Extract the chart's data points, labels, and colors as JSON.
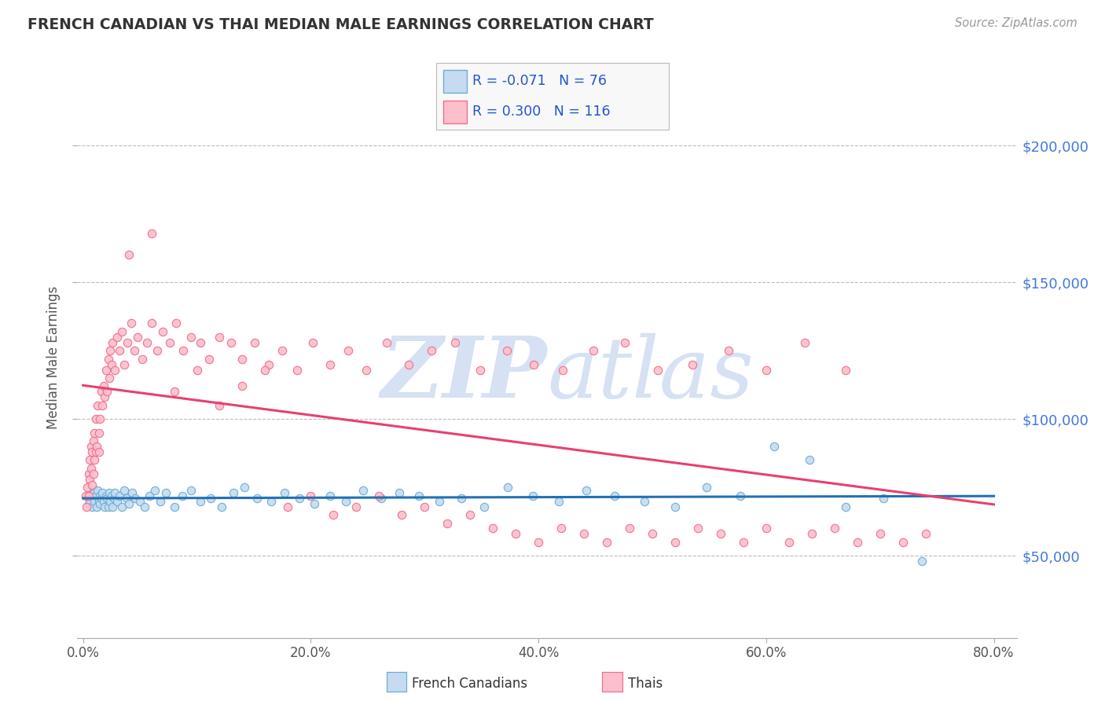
{
  "title": "FRENCH CANADIAN VS THAI MEDIAN MALE EARNINGS CORRELATION CHART",
  "source_text": "Source: ZipAtlas.com",
  "ylabel": "Median Male Earnings",
  "xlim": [
    -0.005,
    0.82
  ],
  "ylim": [
    20000,
    225000
  ],
  "xtick_labels": [
    "0.0%",
    "20.0%",
    "40.0%",
    "60.0%",
    "80.0%"
  ],
  "xtick_values": [
    0.0,
    0.2,
    0.4,
    0.6,
    0.8
  ],
  "ytick_values": [
    50000,
    100000,
    150000,
    200000
  ],
  "ytick_labels": [
    "$50,000",
    "$100,000",
    "$150,000",
    "$200,000"
  ],
  "blue_color": "#6baed6",
  "blue_face": "#c6dbef",
  "pink_color": "#f07090",
  "pink_face": "#fcc0cc",
  "trendline_blue": "#2171b5",
  "trendline_pink": "#e84070",
  "grid_color": "#bbbbbb",
  "watermark_color": "#c5d5ee",
  "legend_text_color": "#2255cc",
  "legend_label_color": "#333333",
  "R_blue": -0.071,
  "N_blue": 76,
  "R_pink": 0.3,
  "N_pink": 116,
  "blue_scatter_x": [
    0.005,
    0.007,
    0.008,
    0.009,
    0.01,
    0.01,
    0.01,
    0.011,
    0.012,
    0.013,
    0.014,
    0.015,
    0.015,
    0.016,
    0.017,
    0.018,
    0.019,
    0.02,
    0.021,
    0.022,
    0.023,
    0.024,
    0.025,
    0.026,
    0.027,
    0.028,
    0.03,
    0.032,
    0.034,
    0.036,
    0.038,
    0.04,
    0.043,
    0.046,
    0.05,
    0.054,
    0.058,
    0.063,
    0.068,
    0.073,
    0.08,
    0.087,
    0.095,
    0.103,
    0.112,
    0.122,
    0.132,
    0.142,
    0.153,
    0.165,
    0.177,
    0.19,
    0.203,
    0.217,
    0.231,
    0.246,
    0.262,
    0.278,
    0.295,
    0.313,
    0.332,
    0.352,
    0.373,
    0.395,
    0.418,
    0.442,
    0.467,
    0.493,
    0.52,
    0.548,
    0.577,
    0.607,
    0.638,
    0.67,
    0.703,
    0.737
  ],
  "blue_scatter_y": [
    69000,
    72000,
    68000,
    74000,
    71000,
    73000,
    70000,
    72000,
    68000,
    74000,
    70000,
    69000,
    72000,
    71000,
    73000,
    70000,
    68000,
    72000,
    71000,
    68000,
    73000,
    70000,
    72000,
    68000,
    71000,
    73000,
    70000,
    72000,
    68000,
    74000,
    71000,
    69000,
    73000,
    71000,
    70000,
    68000,
    72000,
    74000,
    70000,
    73000,
    68000,
    72000,
    74000,
    70000,
    71000,
    68000,
    73000,
    75000,
    71000,
    70000,
    73000,
    71000,
    69000,
    72000,
    70000,
    74000,
    71000,
    73000,
    72000,
    70000,
    71000,
    68000,
    75000,
    72000,
    70000,
    74000,
    72000,
    70000,
    68000,
    75000,
    72000,
    90000,
    85000,
    68000,
    71000,
    48000
  ],
  "pink_scatter_x": [
    0.002,
    0.003,
    0.004,
    0.005,
    0.005,
    0.006,
    0.006,
    0.007,
    0.007,
    0.008,
    0.008,
    0.009,
    0.009,
    0.01,
    0.01,
    0.011,
    0.011,
    0.012,
    0.013,
    0.014,
    0.014,
    0.015,
    0.016,
    0.017,
    0.018,
    0.019,
    0.02,
    0.021,
    0.022,
    0.023,
    0.024,
    0.025,
    0.026,
    0.028,
    0.03,
    0.032,
    0.034,
    0.036,
    0.039,
    0.042,
    0.045,
    0.048,
    0.052,
    0.056,
    0.06,
    0.065,
    0.07,
    0.076,
    0.082,
    0.088,
    0.095,
    0.103,
    0.111,
    0.12,
    0.13,
    0.14,
    0.151,
    0.163,
    0.175,
    0.188,
    0.202,
    0.217,
    0.233,
    0.249,
    0.267,
    0.286,
    0.306,
    0.327,
    0.349,
    0.372,
    0.396,
    0.421,
    0.448,
    0.476,
    0.505,
    0.535,
    0.567,
    0.6,
    0.634,
    0.67,
    0.04,
    0.06,
    0.08,
    0.1,
    0.12,
    0.14,
    0.16,
    0.18,
    0.2,
    0.22,
    0.24,
    0.26,
    0.28,
    0.3,
    0.32,
    0.34,
    0.36,
    0.38,
    0.4,
    0.42,
    0.44,
    0.46,
    0.48,
    0.5,
    0.52,
    0.54,
    0.56,
    0.58,
    0.6,
    0.62,
    0.64,
    0.66,
    0.68,
    0.7,
    0.72,
    0.74
  ],
  "pink_scatter_y": [
    72000,
    68000,
    75000,
    80000,
    72000,
    85000,
    78000,
    82000,
    90000,
    88000,
    76000,
    92000,
    80000,
    95000,
    85000,
    88000,
    100000,
    90000,
    105000,
    95000,
    88000,
    100000,
    110000,
    105000,
    112000,
    108000,
    118000,
    110000,
    122000,
    115000,
    125000,
    120000,
    128000,
    118000,
    130000,
    125000,
    132000,
    120000,
    128000,
    135000,
    125000,
    130000,
    122000,
    128000,
    135000,
    125000,
    132000,
    128000,
    135000,
    125000,
    130000,
    128000,
    122000,
    130000,
    128000,
    122000,
    128000,
    120000,
    125000,
    118000,
    128000,
    120000,
    125000,
    118000,
    128000,
    120000,
    125000,
    128000,
    118000,
    125000,
    120000,
    118000,
    125000,
    128000,
    118000,
    120000,
    125000,
    118000,
    128000,
    118000,
    160000,
    168000,
    110000,
    118000,
    105000,
    112000,
    118000,
    68000,
    72000,
    65000,
    68000,
    72000,
    65000,
    68000,
    62000,
    65000,
    60000,
    58000,
    55000,
    60000,
    58000,
    55000,
    60000,
    58000,
    55000,
    60000,
    58000,
    55000,
    60000,
    55000,
    58000,
    60000,
    55000,
    58000,
    55000,
    58000
  ]
}
